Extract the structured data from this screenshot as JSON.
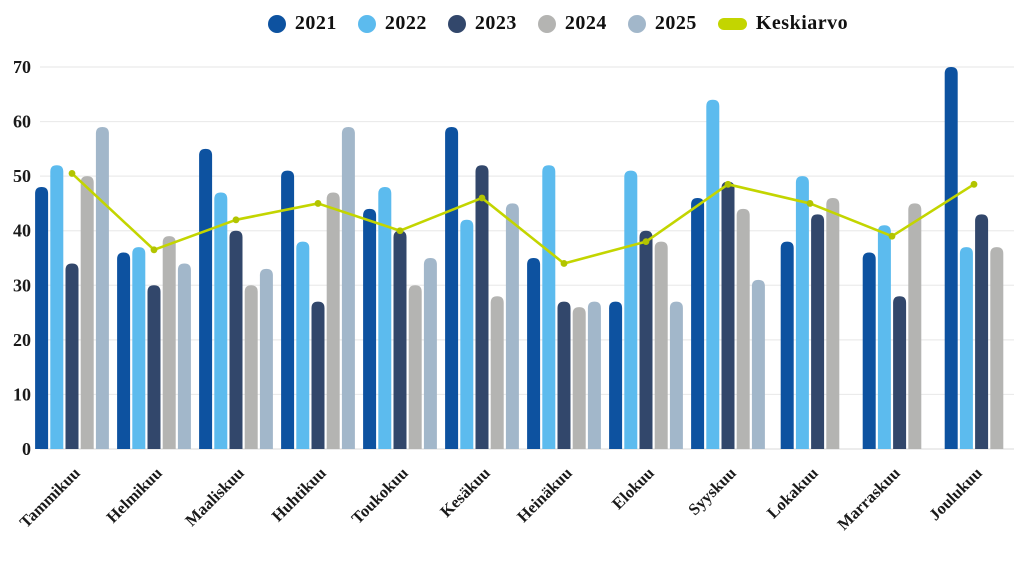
{
  "chart_data": {
    "type": "bar",
    "title": "",
    "xlabel": "",
    "ylabel": "",
    "categories": [
      "Tammikuu",
      "Helmikuu",
      "Maaliskuu",
      "Huhtikuu",
      "Toukokuu",
      "Kesäkuu",
      "Heinäkuu",
      "Elokuu",
      "Syyskuu",
      "Lokakuu",
      "Marraskuu",
      "Joulukuu"
    ],
    "series": [
      {
        "name": "2021",
        "color": "#0D52A0",
        "values": [
          48,
          36,
          55,
          51,
          44,
          59,
          35,
          27,
          46,
          38,
          36,
          70
        ]
      },
      {
        "name": "2022",
        "color": "#5CBBEE",
        "values": [
          52,
          37,
          47,
          38,
          48,
          42,
          52,
          51,
          64,
          50,
          41,
          37
        ]
      },
      {
        "name": "2023",
        "color": "#32476B",
        "values": [
          34,
          30,
          40,
          27,
          40,
          52,
          27,
          40,
          49,
          43,
          28,
          43
        ]
      },
      {
        "name": "2024",
        "color": "#B4B4B2",
        "values": [
          50,
          39,
          30,
          47,
          30,
          28,
          26,
          38,
          44,
          46,
          45,
          37
        ]
      },
      {
        "name": "2025",
        "color": "#A2B7CA",
        "values": [
          59,
          34,
          33,
          59,
          35,
          45,
          27,
          27,
          31,
          null,
          null,
          null
        ]
      }
    ],
    "line_series": {
      "name": "Keskiarvo",
      "color": "#C3D500",
      "values": [
        50.5,
        36.5,
        42,
        45,
        40,
        46,
        34,
        38,
        48.5,
        45,
        39,
        48.5
      ]
    },
    "ylim": [
      0,
      70
    ],
    "yticks": [
      0,
      10,
      20,
      30,
      40,
      50,
      60,
      70
    ],
    "grid": "horizontal",
    "legend_position": "top"
  },
  "colors": {
    "gridline": "#EBEBEB",
    "axis_line": "#E0E0E0",
    "text": "#1A1A1A",
    "background": "#FFFFFF"
  }
}
